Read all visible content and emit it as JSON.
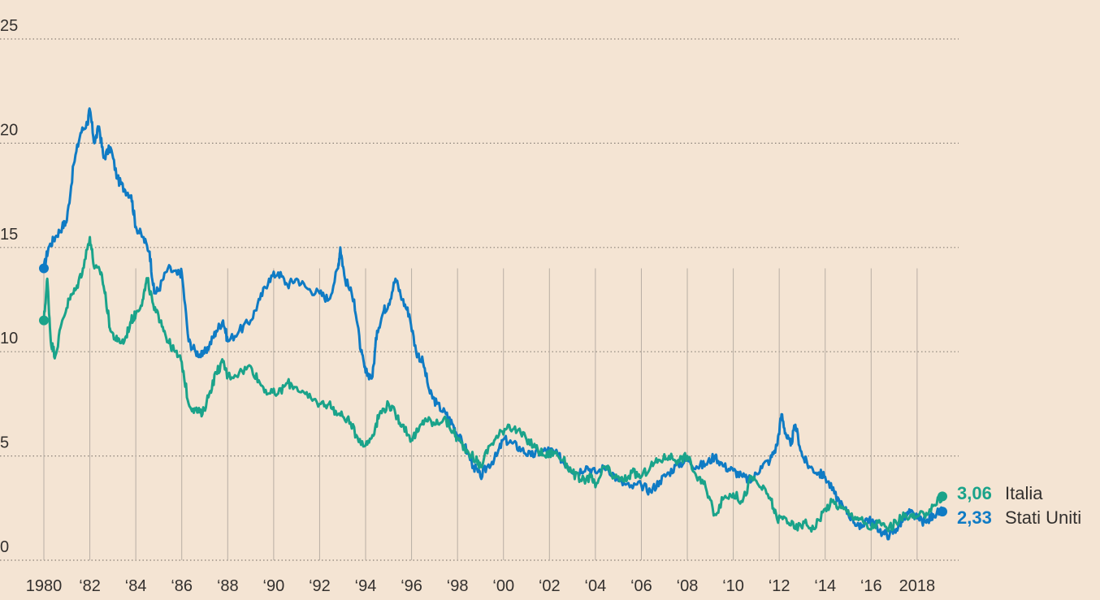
{
  "chart_data": {
    "type": "line",
    "title": "",
    "xlabel": "",
    "ylabel": "",
    "ylim": [
      0,
      25
    ],
    "xlim": [
      1980,
      2019.1
    ],
    "y_ticks": [
      0,
      5,
      10,
      15,
      20,
      25
    ],
    "x_tick_values": [
      1980,
      1982,
      1984,
      1986,
      1988,
      1990,
      1992,
      1994,
      1996,
      1998,
      2000,
      2002,
      2004,
      2006,
      2008,
      2010,
      2012,
      2014,
      2016,
      2018
    ],
    "x_tick_labels": [
      "1980",
      "‘82",
      "‘84",
      "‘86",
      "‘88",
      "‘90",
      "‘92",
      "‘94",
      "‘96",
      "‘98",
      "‘00",
      "‘02",
      "‘04",
      "‘06",
      "‘08",
      "‘10",
      "‘12",
      "‘14",
      "‘16",
      "2018"
    ],
    "grid": "horizontal dotted lines; vertical lines at x ticks",
    "series": [
      {
        "name": "Stati Uniti",
        "color": "#0f7bc4",
        "end_label": "2,33",
        "points": [
          [
            1980.0,
            14.0
          ],
          [
            1980.2,
            15.0
          ],
          [
            1980.5,
            15.5
          ],
          [
            1980.8,
            16.0
          ],
          [
            1981.0,
            16.3
          ],
          [
            1981.3,
            19.0
          ],
          [
            1981.6,
            20.5
          ],
          [
            1981.9,
            21.0
          ],
          [
            1982.0,
            21.6
          ],
          [
            1982.2,
            20.0
          ],
          [
            1982.4,
            20.8
          ],
          [
            1982.6,
            19.3
          ],
          [
            1982.9,
            19.8
          ],
          [
            1983.2,
            18.3
          ],
          [
            1983.5,
            17.8
          ],
          [
            1983.8,
            17.5
          ],
          [
            1984.0,
            16.0
          ],
          [
            1984.3,
            15.5
          ],
          [
            1984.6,
            14.8
          ],
          [
            1984.8,
            12.8
          ],
          [
            1985.0,
            13.0
          ],
          [
            1985.4,
            14.0
          ],
          [
            1985.8,
            13.7
          ],
          [
            1986.0,
            13.8
          ],
          [
            1986.3,
            10.5
          ],
          [
            1986.6,
            10.0
          ],
          [
            1986.9,
            9.8
          ],
          [
            1987.2,
            10.3
          ],
          [
            1987.5,
            11.0
          ],
          [
            1987.8,
            11.5
          ],
          [
            1988.0,
            10.5
          ],
          [
            1988.5,
            11.0
          ],
          [
            1989.0,
            11.5
          ],
          [
            1989.4,
            12.5
          ],
          [
            1989.8,
            13.5
          ],
          [
            1990.2,
            13.8
          ],
          [
            1990.6,
            13.2
          ],
          [
            1991.0,
            13.5
          ],
          [
            1991.5,
            13.0
          ],
          [
            1992.0,
            12.8
          ],
          [
            1992.4,
            12.5
          ],
          [
            1992.8,
            14.0
          ],
          [
            1992.9,
            15.0
          ],
          [
            1993.1,
            13.5
          ],
          [
            1993.5,
            12.5
          ],
          [
            1993.8,
            10.0
          ],
          [
            1994.0,
            9.0
          ],
          [
            1994.3,
            8.8
          ],
          [
            1994.5,
            11.0
          ],
          [
            1994.8,
            12.0
          ],
          [
            1995.0,
            12.3
          ],
          [
            1995.3,
            13.5
          ],
          [
            1995.6,
            12.5
          ],
          [
            1995.9,
            11.8
          ],
          [
            1996.2,
            10.0
          ],
          [
            1996.5,
            9.5
          ],
          [
            1996.8,
            8.0
          ],
          [
            1997.1,
            7.5
          ],
          [
            1997.5,
            7.0
          ],
          [
            1997.8,
            6.5
          ],
          [
            1998.0,
            6.0
          ],
          [
            1998.3,
            5.5
          ],
          [
            1998.7,
            4.5
          ],
          [
            1999.0,
            4.0
          ],
          [
            1999.3,
            4.5
          ],
          [
            1999.7,
            5.0
          ],
          [
            2000.0,
            5.8
          ],
          [
            2000.4,
            5.6
          ],
          [
            2000.8,
            5.3
          ],
          [
            2001.2,
            5.0
          ],
          [
            2001.6,
            5.2
          ],
          [
            2002.0,
            5.3
          ],
          [
            2002.4,
            5.0
          ],
          [
            2002.8,
            4.5
          ],
          [
            2003.2,
            4.2
          ],
          [
            2003.6,
            4.5
          ],
          [
            2004.0,
            4.2
          ],
          [
            2004.5,
            4.5
          ],
          [
            2005.0,
            3.8
          ],
          [
            2005.5,
            3.5
          ],
          [
            2006.0,
            3.6
          ],
          [
            2006.4,
            3.3
          ],
          [
            2006.8,
            3.8
          ],
          [
            2007.2,
            4.2
          ],
          [
            2007.6,
            4.6
          ],
          [
            2008.0,
            4.8
          ],
          [
            2008.4,
            4.5
          ],
          [
            2008.8,
            4.6
          ],
          [
            2009.2,
            5.0
          ],
          [
            2009.6,
            4.5
          ],
          [
            2010.0,
            4.3
          ],
          [
            2010.4,
            4.0
          ],
          [
            2010.8,
            3.8
          ],
          [
            2011.2,
            4.5
          ],
          [
            2011.6,
            4.8
          ],
          [
            2011.9,
            5.5
          ],
          [
            2012.1,
            7.0
          ],
          [
            2012.3,
            6.0
          ],
          [
            2012.5,
            5.5
          ],
          [
            2012.7,
            6.5
          ],
          [
            2013.0,
            5.0
          ],
          [
            2013.3,
            4.5
          ],
          [
            2013.7,
            4.2
          ],
          [
            2014.0,
            4.0
          ],
          [
            2014.4,
            3.2
          ],
          [
            2014.8,
            2.5
          ],
          [
            2015.2,
            2.0
          ],
          [
            2015.5,
            1.5
          ],
          [
            2015.8,
            2.0
          ],
          [
            2016.1,
            1.8
          ],
          [
            2016.5,
            1.3
          ],
          [
            2016.8,
            1.2
          ],
          [
            2017.1,
            1.5
          ],
          [
            2017.4,
            2.0
          ],
          [
            2017.7,
            2.3
          ],
          [
            2018.0,
            2.0
          ],
          [
            2018.4,
            1.8
          ],
          [
            2018.7,
            2.2
          ],
          [
            2019.1,
            2.33
          ]
        ]
      },
      {
        "name": "Italia",
        "color": "#1aa38a",
        "end_label": "3,06",
        "points": [
          [
            1980.0,
            11.5
          ],
          [
            1980.15,
            13.5
          ],
          [
            1980.3,
            10.5
          ],
          [
            1980.5,
            9.8
          ],
          [
            1980.8,
            11.5
          ],
          [
            1981.1,
            12.5
          ],
          [
            1981.4,
            13.0
          ],
          [
            1981.7,
            14.0
          ],
          [
            1982.0,
            15.5
          ],
          [
            1982.2,
            14.0
          ],
          [
            1982.5,
            13.8
          ],
          [
            1982.7,
            12.5
          ],
          [
            1982.9,
            11.0
          ],
          [
            1983.2,
            10.5
          ],
          [
            1983.5,
            10.5
          ],
          [
            1983.8,
            11.5
          ],
          [
            1984.0,
            11.8
          ],
          [
            1984.3,
            12.5
          ],
          [
            1984.5,
            13.5
          ],
          [
            1984.8,
            12.0
          ],
          [
            1985.1,
            11.5
          ],
          [
            1985.4,
            10.5
          ],
          [
            1985.7,
            10.0
          ],
          [
            1986.0,
            9.5
          ],
          [
            1986.3,
            7.5
          ],
          [
            1986.6,
            7.2
          ],
          [
            1986.9,
            7.0
          ],
          [
            1987.2,
            8.0
          ],
          [
            1987.5,
            9.0
          ],
          [
            1987.8,
            9.5
          ],
          [
            1988.0,
            8.8
          ],
          [
            1988.5,
            9.0
          ],
          [
            1989.0,
            9.3
          ],
          [
            1989.4,
            8.5
          ],
          [
            1989.8,
            8.0
          ],
          [
            1990.2,
            8.0
          ],
          [
            1990.6,
            8.5
          ],
          [
            1991.0,
            8.3
          ],
          [
            1991.5,
            7.8
          ],
          [
            1992.0,
            7.5
          ],
          [
            1992.4,
            7.5
          ],
          [
            1992.8,
            7.0
          ],
          [
            1993.2,
            6.8
          ],
          [
            1993.6,
            6.0
          ],
          [
            1994.0,
            5.5
          ],
          [
            1994.3,
            6.0
          ],
          [
            1994.6,
            7.0
          ],
          [
            1995.0,
            7.5
          ],
          [
            1995.3,
            7.0
          ],
          [
            1995.6,
            6.5
          ],
          [
            1996.0,
            5.8
          ],
          [
            1996.3,
            6.2
          ],
          [
            1996.6,
            6.8
          ],
          [
            1997.0,
            6.5
          ],
          [
            1997.4,
            6.8
          ],
          [
            1997.8,
            6.2
          ],
          [
            1998.0,
            5.8
          ],
          [
            1998.4,
            5.3
          ],
          [
            1998.8,
            4.8
          ],
          [
            1999.0,
            4.5
          ],
          [
            1999.4,
            5.5
          ],
          [
            1999.8,
            6.0
          ],
          [
            2000.2,
            6.5
          ],
          [
            2000.6,
            6.2
          ],
          [
            2001.0,
            5.8
          ],
          [
            2001.4,
            5.4
          ],
          [
            2001.8,
            5.0
          ],
          [
            2002.2,
            5.2
          ],
          [
            2002.6,
            4.8
          ],
          [
            2003.0,
            4.2
          ],
          [
            2003.4,
            3.8
          ],
          [
            2003.8,
            4.0
          ],
          [
            2004.0,
            3.5
          ],
          [
            2004.4,
            4.5
          ],
          [
            2004.8,
            4.0
          ],
          [
            2005.2,
            3.8
          ],
          [
            2005.6,
            4.2
          ],
          [
            2006.0,
            4.0
          ],
          [
            2006.4,
            4.5
          ],
          [
            2006.8,
            4.8
          ],
          [
            2007.2,
            5.0
          ],
          [
            2007.6,
            4.8
          ],
          [
            2008.0,
            5.0
          ],
          [
            2008.4,
            4.0
          ],
          [
            2008.8,
            3.5
          ],
          [
            2009.2,
            2.2
          ],
          [
            2009.6,
            3.0
          ],
          [
            2010.0,
            3.2
          ],
          [
            2010.4,
            2.8
          ],
          [
            2010.8,
            4.0
          ],
          [
            2011.2,
            3.5
          ],
          [
            2011.6,
            3.0
          ],
          [
            2011.9,
            2.0
          ],
          [
            2012.3,
            2.0
          ],
          [
            2012.7,
            1.5
          ],
          [
            2013.1,
            1.8
          ],
          [
            2013.5,
            1.5
          ],
          [
            2013.9,
            2.3
          ],
          [
            2014.3,
            2.8
          ],
          [
            2014.7,
            2.5
          ],
          [
            2015.1,
            2.2
          ],
          [
            2015.5,
            2.0
          ],
          [
            2015.9,
            1.5
          ],
          [
            2016.3,
            1.8
          ],
          [
            2016.7,
            1.5
          ],
          [
            2017.1,
            1.8
          ],
          [
            2017.5,
            2.2
          ],
          [
            2017.9,
            2.0
          ],
          [
            2018.3,
            2.2
          ],
          [
            2018.7,
            2.6
          ],
          [
            2019.1,
            3.06
          ]
        ]
      }
    ]
  }
}
